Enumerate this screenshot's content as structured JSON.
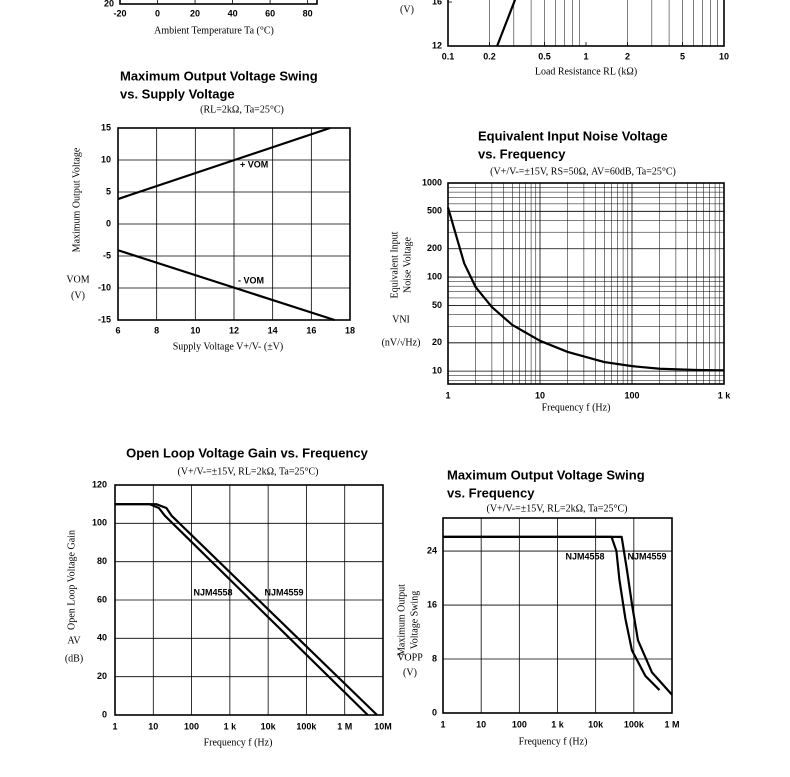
{
  "chart_data": [
    {
      "type": "line",
      "xlabel": "Ambient Temperature Ta (°C)",
      "xlim": [
        -20,
        85
      ],
      "ylim": [
        20,
        40
      ],
      "xticks": [
        -20,
        0,
        20,
        40,
        60,
        80
      ],
      "yticks": [
        20
      ],
      "grid": false,
      "series": []
    },
    {
      "type": "line",
      "xlabel": "Load Resistance RL (kΩ)",
      "yunit": "(V)",
      "xscale": "log",
      "xlim": [
        0.1,
        10
      ],
      "ylim": [
        12,
        20
      ],
      "xticks": [
        0.1,
        0.2,
        0.5,
        1,
        2,
        5,
        10
      ],
      "yticks": [
        12,
        16
      ],
      "grid": false,
      "minor_grid_x": true,
      "series": [
        {
          "color": "#000000",
          "x": [
            0.227,
            0.306
          ],
          "values": [
            12,
            16.2
          ]
        }
      ]
    },
    {
      "type": "line",
      "title": [
        "Maximum Output Voltage Swing",
        "vs. Supply Voltage"
      ],
      "subtitle": "(RL=2kΩ, Ta=25°C)",
      "xlabel": "Supply Voltage V+/V- (±V)",
      "ylabel": [
        "Maximum Output Voltage"
      ],
      "ysymbol": "VOM",
      "yunit": "(V)",
      "xlim": [
        6,
        18
      ],
      "ylim": [
        -15,
        15
      ],
      "xticks": [
        6,
        8,
        10,
        12,
        14,
        16,
        18
      ],
      "yticks": [
        15,
        10,
        5,
        0,
        -5,
        -10,
        -15
      ],
      "grid": true,
      "series": [
        {
          "name": "+ VOM",
          "color": "#000000",
          "x": [
            6,
            16.97
          ],
          "values": [
            3.9,
            15
          ]
        },
        {
          "name": "- VOM",
          "color": "#000000",
          "x": [
            6,
            17.2
          ],
          "values": [
            -4.1,
            -15
          ]
        }
      ]
    },
    {
      "type": "line",
      "title": [
        "Equivalent Input Noise Voltage",
        "vs. Frequency"
      ],
      "subtitle": "(V+/V-=±15V, RS=50Ω, AV=60dB, Ta=25°C)",
      "xlabel": "Frequency f (Hz)",
      "ylabel": [
        "Equivalent Input",
        "Noise Voltage"
      ],
      "ysymbol": "VNI",
      "yunit": "(nV/√Hz)",
      "xscale": "log",
      "yscale": "log",
      "xlim": [
        1,
        1000
      ],
      "ylim": [
        7.3,
        1000
      ],
      "xticks": [
        1,
        10,
        100,
        {
          "value": 1000,
          "label": "1 k"
        }
      ],
      "yticks": [
        1000,
        500,
        200,
        100,
        50,
        20,
        10
      ],
      "grid": true,
      "minor_grid_x": true,
      "minor_grid_y": true,
      "series": [
        {
          "color": "#000000",
          "x": [
            1,
            1.5,
            2,
            3,
            5,
            10,
            20,
            50,
            100,
            200,
            500,
            1000
          ],
          "values": [
            550,
            140,
            78,
            48,
            31,
            21,
            16,
            12.5,
            11.3,
            10.6,
            10.3,
            10.2
          ]
        }
      ]
    },
    {
      "type": "line",
      "title": [
        "Open Loop Voltage Gain vs. Frequency"
      ],
      "subtitle": "(V+/V-=±15V, RL=2kΩ, Ta=25°C)",
      "xlabel": "Frequency f (Hz)",
      "ylabel": [
        "Open Loop Voltage Gain"
      ],
      "ysymbol": "AV",
      "yunit": "(dB)",
      "xscale": "log",
      "xlim": [
        1,
        10000000
      ],
      "ylim": [
        0,
        120
      ],
      "xticks": [
        1,
        10,
        100,
        {
          "value": 1000,
          "label": "1 k"
        },
        {
          "value": 10000,
          "label": "10k"
        },
        {
          "value": 100000,
          "label": "100k"
        },
        {
          "value": 1000000,
          "label": "1 M"
        },
        {
          "value": 10000000,
          "label": "10M"
        }
      ],
      "yticks": [
        0,
        20,
        40,
        60,
        80,
        100,
        120
      ],
      "grid": true,
      "series": [
        {
          "name": "NJM4558",
          "color": "#000000",
          "x": [
            1,
            8,
            14,
            20,
            4000000
          ],
          "values": [
            110,
            110,
            108,
            104,
            0
          ]
        },
        {
          "name": "NJM4559",
          "color": "#000000",
          "x": [
            1,
            12,
            22,
            30,
            7000000
          ],
          "values": [
            110,
            110,
            108,
            104,
            0
          ]
        }
      ]
    },
    {
      "type": "line",
      "title": [
        "Maximum Output Voltage Swing",
        "vs. Frequency"
      ],
      "subtitle": "(V+/V-=±15V, RL=2kΩ, Ta=25°C)",
      "xlabel": "Frequency f (Hz)",
      "ylabel": [
        "Maximum Output",
        "Voltage Swing"
      ],
      "ysymbol": "VOPP",
      "yunit": "(V)",
      "xscale": "log",
      "xlim": [
        1,
        1000000
      ],
      "ylim": [
        0,
        28.9
      ],
      "xticks": [
        1,
        10,
        100,
        {
          "value": 1000,
          "label": "1 k"
        },
        {
          "value": 10000,
          "label": "10k"
        },
        {
          "value": 100000,
          "label": "100k"
        },
        {
          "value": 1000000,
          "label": "1 M"
        }
      ],
      "yticks": [
        0,
        8,
        16,
        24
      ],
      "grid": true,
      "series": [
        {
          "name": "NJM4558",
          "color": "#000000",
          "x": [
            1,
            10000,
            26000,
            35000,
            42000,
            60000,
            89000,
            200000,
            470000
          ],
          "values": [
            26.1,
            26.1,
            26.1,
            24,
            19.7,
            14,
            9.3,
            5.5,
            3.4
          ]
        },
        {
          "name": "NJM4559",
          "color": "#000000",
          "x": [
            1,
            10000,
            48000,
            55000,
            66000,
            90000,
            128000,
            300000,
            1000000
          ],
          "values": [
            26.1,
            26.1,
            26.1,
            24,
            21.2,
            16,
            10.8,
            6,
            2.7
          ]
        }
      ]
    }
  ]
}
